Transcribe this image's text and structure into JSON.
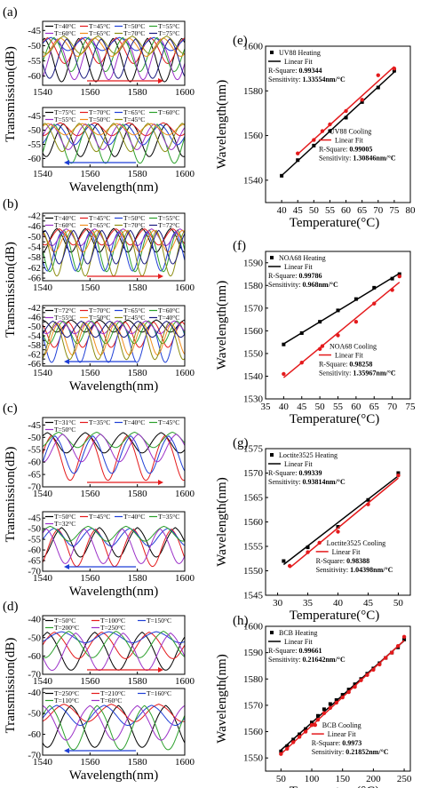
{
  "panels": [
    "(a)",
    "(b)",
    "(c)",
    "(d)",
    "(e)",
    "(f)",
    "(g)",
    "(h)"
  ],
  "left_axis": {
    "ylabel": "Transmission(dB)",
    "xlabel": "Wavelength(nm)",
    "xticks": [
      "1540",
      "1560",
      "1580",
      "1600"
    ]
  },
  "right_axis": {
    "ylabel": "Wavelength(nm)",
    "xlabel": "Temperature(°C)"
  },
  "colors": {
    "black": "#000000",
    "red": "#e41a1c",
    "blue": "#1f3fd6",
    "green": "#2ca02c",
    "purple": "#9b30c8",
    "orange": "#f28e1c",
    "olive": "#8c8c10",
    "navy": "#1a1a80",
    "magenta": "#d42bd1",
    "teal": "#1aa0a0",
    "pink": "#f06090"
  },
  "chart_data": [
    {
      "id": "a-heating",
      "type": "line",
      "legend": [
        "T=40°C",
        "T=45°C",
        "T=50°C",
        "T=55°C",
        "T=60°C",
        "T=65°C",
        "T=70°C",
        "T=75°C"
      ],
      "yticks": [
        "-45",
        "-50",
        "-55",
        "-60"
      ],
      "xlim": [
        1540,
        1600
      ],
      "ylim": [
        -63,
        -42
      ],
      "dip_spacing": 14.5,
      "dip_start": 1548,
      "shift_per_curve": 1.35,
      "arrow": "right"
    },
    {
      "id": "a-cooling",
      "type": "line",
      "legend": [
        "T=75°C",
        "T=70°C",
        "T=65°C",
        "T=60°C",
        "T=55°C",
        "T=50°C",
        "T=45°C"
      ],
      "yticks": [
        "-45",
        "-50",
        "-55",
        "-60"
      ],
      "xlim": [
        1540,
        1600
      ],
      "ylim": [
        -63,
        -42
      ],
      "dip_spacing": 14.5,
      "dip_start": 1556,
      "shift_per_curve": -1.3,
      "arrow": "left"
    },
    {
      "id": "b-heating",
      "type": "line",
      "legend": [
        "T=40°C",
        "T=45°C",
        "T=50°C",
        "T=55°C",
        "T=60°C",
        "T=65°C",
        "T=70°C",
        "T=72°C"
      ],
      "yticks": [
        "-42",
        "-44",
        "-46",
        "-48",
        "-50",
        "-52",
        "-54",
        "-56",
        "-58",
        "-60",
        "-62",
        "-64",
        "-66"
      ],
      "xlim": [
        1540,
        1600
      ],
      "ylim": [
        -67,
        -41
      ],
      "dip_spacing": 12,
      "dip_start": 1552,
      "shift_per_curve": 1.0,
      "arrow": "right"
    },
    {
      "id": "b-cooling",
      "type": "line",
      "legend": [
        "T=72°C",
        "T=70°C",
        "T=65°C",
        "T=60°C",
        "T=55°C",
        "T=50°C",
        "T=45°C",
        "T=40°C"
      ],
      "yticks": [
        "-42",
        "-44",
        "-46",
        "-48",
        "-50",
        "-52",
        "-54",
        "-56",
        "-58",
        "-60",
        "-62",
        "-64",
        "-66"
      ],
      "xlim": [
        1540,
        1600
      ],
      "ylim": [
        -67,
        -41
      ],
      "dip_spacing": 12,
      "dip_start": 1558,
      "shift_per_curve": -1.1,
      "arrow": "left"
    },
    {
      "id": "c-heating",
      "type": "line",
      "legend": [
        "T=31°C",
        "T=35°C",
        "T=40°C",
        "T=45°C",
        "T=50°C"
      ],
      "yticks": [
        "-45",
        "-50",
        "-55",
        "-60",
        "-65",
        "-70"
      ],
      "xlim": [
        1540,
        1600
      ],
      "ylim": [
        -70,
        -42
      ],
      "dip_spacing": 16,
      "dip_start": 1550,
      "shift_per_curve": 1.6,
      "arrow": "right"
    },
    {
      "id": "c-cooling",
      "type": "line",
      "legend": [
        "T=50°C",
        "T=45°C",
        "T=40°C",
        "T=35°C",
        "T=32°C"
      ],
      "yticks": [
        "-45",
        "-50",
        "-55",
        "-60",
        "-65",
        "-70"
      ],
      "xlim": [
        1540,
        1600
      ],
      "ylim": [
        -70,
        -42
      ],
      "dip_spacing": 16,
      "dip_start": 1556,
      "shift_per_curve": -1.6,
      "arrow": "left"
    },
    {
      "id": "d-heating",
      "type": "line",
      "legend": [
        "T=50°C",
        "T=100°C",
        "T=150°C",
        "T=200°C",
        "T=250°C"
      ],
      "yticks": [
        "-40",
        "-50",
        "-60",
        "-70"
      ],
      "xlim": [
        1540,
        1600
      ],
      "ylim": [
        -70,
        -38
      ],
      "dip_spacing": 20,
      "dip_start": 1552,
      "shift_per_curve": 3.0,
      "arrow": "right"
    },
    {
      "id": "d-cooling",
      "type": "line",
      "legend": [
        "T=250°C",
        "T=210°C",
        "T=160°C",
        "T=110°C",
        "T=60°C"
      ],
      "yticks": [
        "-40",
        "-50",
        "-60",
        "-70"
      ],
      "xlim": [
        1540,
        1600
      ],
      "ylim": [
        -70,
        -38
      ],
      "dip_spacing": 20,
      "dip_start": 1562,
      "shift_per_curve": -3.0,
      "arrow": "left"
    },
    {
      "id": "e",
      "type": "scatter",
      "xlim": [
        35,
        80
      ],
      "ylim": [
        1530,
        1600
      ],
      "xticks": [
        40,
        45,
        50,
        55,
        60,
        65,
        70,
        75,
        80
      ],
      "yticks": [
        1540,
        1560,
        1580,
        1600
      ],
      "series": [
        {
          "name": "UV88 Heating",
          "fit": "Linear Fit",
          "rsq": "0.99344",
          "sens": "1.33554nm/°C",
          "color": "black",
          "marker": "square",
          "x": [
            40,
            45,
            50,
            55,
            60,
            65,
            70,
            75
          ],
          "y": [
            1542,
            1549,
            1555.5,
            1562,
            1568,
            1575,
            1581.5,
            1589
          ]
        },
        {
          "name": "UV88 Cooling",
          "fit": "Linear Fit",
          "rsq": "0.99005",
          "sens": "1.30846nm/°C",
          "color": "red",
          "marker": "circle",
          "x": [
            45,
            50,
            55,
            60,
            65,
            70,
            75
          ],
          "y": [
            1552,
            1558,
            1565,
            1571,
            1576,
            1587,
            1590
          ]
        }
      ]
    },
    {
      "id": "f",
      "type": "scatter",
      "xlim": [
        35,
        75
      ],
      "ylim": [
        1530,
        1595
      ],
      "xticks": [
        35,
        40,
        45,
        50,
        55,
        60,
        65,
        70,
        75
      ],
      "yticks": [
        1530,
        1540,
        1550,
        1560,
        1570,
        1580,
        1590
      ],
      "series": [
        {
          "name": "NOA68 Heating",
          "fit": "Linear Fit",
          "rsq": "0.99786",
          "sens": "0.968nm/°C",
          "color": "black",
          "marker": "square",
          "x": [
            40,
            45,
            50,
            55,
            60,
            65,
            70,
            72
          ],
          "y": [
            1554,
            1559,
            1564,
            1569,
            1574,
            1579,
            1583,
            1585
          ]
        },
        {
          "name": "NOA68 Cooling",
          "fit": "Linear Fit",
          "rsq": "0.98258",
          "sens": "1.35967nm/°C",
          "color": "red",
          "marker": "circle",
          "x": [
            40,
            45,
            50,
            55,
            60,
            65,
            70,
            72
          ],
          "y": [
            1541,
            1546,
            1552,
            1558,
            1564,
            1572,
            1578,
            1584
          ]
        }
      ]
    },
    {
      "id": "g",
      "type": "scatter",
      "xlim": [
        28,
        52
      ],
      "ylim": [
        1545,
        1575
      ],
      "xticks": [
        30,
        35,
        40,
        45,
        50
      ],
      "yticks": [
        1545,
        1550,
        1555,
        1560,
        1565,
        1570,
        1575
      ],
      "series": [
        {
          "name": "Loctite3525 Heating",
          "fit": "Linear Fit",
          "rsq": "0.99339",
          "sens": "0.93814nm/°C",
          "color": "black",
          "marker": "square",
          "x": [
            31,
            35,
            40,
            45,
            50
          ],
          "y": [
            1552,
            1554.8,
            1559,
            1564.5,
            1570
          ]
        },
        {
          "name": "Loctite3525 Cooling",
          "fit": "Linear Fit",
          "rsq": "0.98388",
          "sens": "1.04398nm/°C",
          "color": "red",
          "marker": "circle",
          "x": [
            32,
            35,
            40,
            45,
            50
          ],
          "y": [
            1551,
            1553.8,
            1558,
            1563.6,
            1569.5
          ]
        }
      ]
    },
    {
      "id": "h",
      "type": "scatter",
      "xlim": [
        25,
        260
      ],
      "ylim": [
        1545,
        1600
      ],
      "xticks": [
        50,
        100,
        150,
        200,
        250
      ],
      "yticks": [
        1550,
        1560,
        1570,
        1580,
        1590,
        1600
      ],
      "series": [
        {
          "name": "BCB Heating",
          "fit": "Linear Fit",
          "rsq": "0.99661",
          "sens": "0.21642nm/°C",
          "color": "black",
          "marker": "square",
          "x": [
            50,
            60,
            70,
            80,
            90,
            100,
            110,
            120,
            130,
            140,
            150,
            160,
            170,
            180,
            190,
            200,
            210,
            220,
            230,
            240,
            250
          ],
          "y": [
            1552.5,
            1554.5,
            1557,
            1559,
            1561,
            1563.5,
            1566,
            1568.5,
            1570.5,
            1572,
            1574,
            1576,
            1578,
            1580,
            1582,
            1584,
            1586,
            1588,
            1590,
            1592,
            1595
          ]
        },
        {
          "name": "BCB Cooling",
          "fit": "Linear Fit",
          "rsq": "0.9973",
          "sens": "0.21852nm/°C",
          "color": "red",
          "marker": "circle",
          "x": [
            50,
            60,
            70,
            80,
            90,
            100,
            110,
            120,
            130,
            140,
            150,
            160,
            170,
            180,
            190,
            200,
            210,
            220,
            230,
            240,
            250
          ],
          "y": [
            1551.5,
            1553.5,
            1556,
            1558,
            1560,
            1562.5,
            1564.5,
            1567,
            1569,
            1571,
            1573,
            1575,
            1577,
            1579.5,
            1581.5,
            1583.5,
            1585.5,
            1588,
            1590,
            1592.5,
            1596
          ]
        }
      ]
    }
  ]
}
